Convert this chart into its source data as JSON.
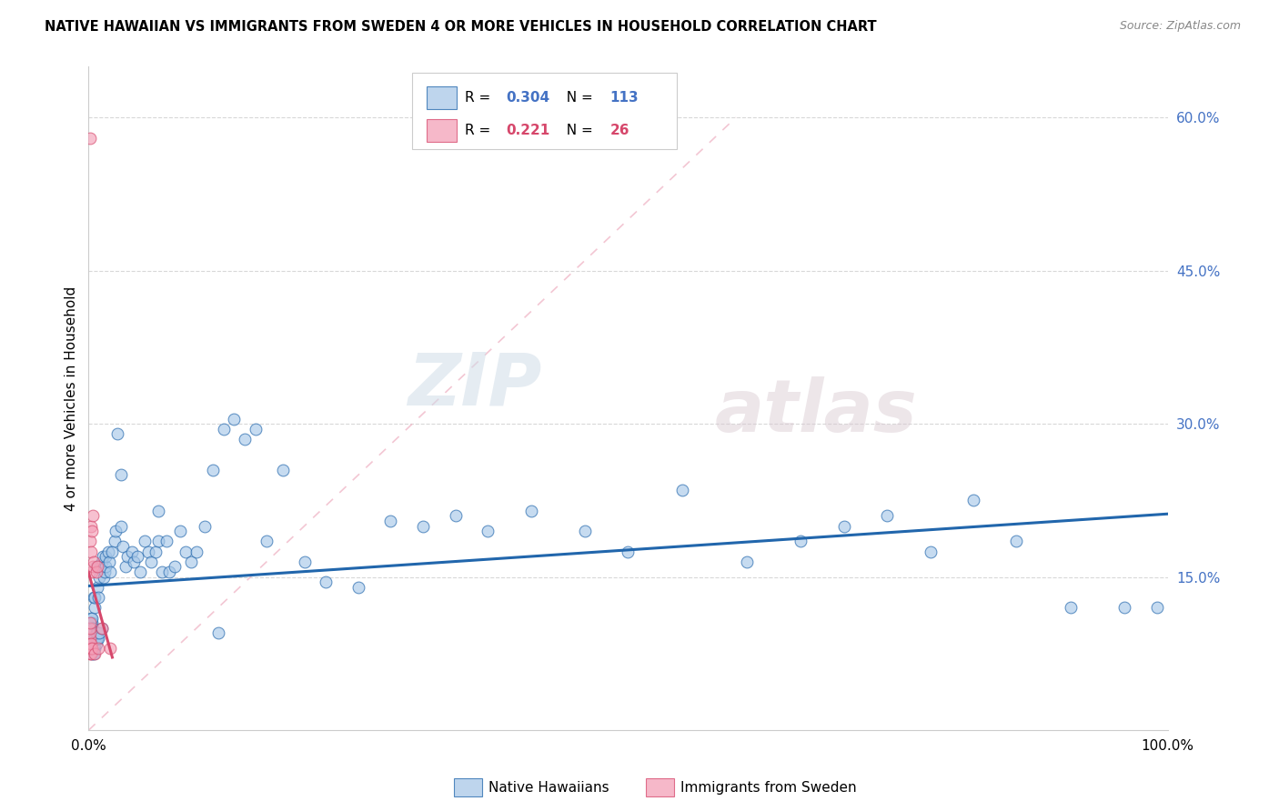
{
  "title": "NATIVE HAWAIIAN VS IMMIGRANTS FROM SWEDEN 4 OR MORE VEHICLES IN HOUSEHOLD CORRELATION CHART",
  "source": "Source: ZipAtlas.com",
  "ylabel": "4 or more Vehicles in Household",
  "xlim": [
    0,
    1.0
  ],
  "ylim": [
    0,
    0.65
  ],
  "x_ticks": [
    0.0,
    0.2,
    0.4,
    0.6,
    0.8,
    1.0
  ],
  "x_tick_labels": [
    "0.0%",
    "",
    "",
    "",
    "",
    "100.0%"
  ],
  "y_ticks": [
    0.0,
    0.15,
    0.3,
    0.45,
    0.6
  ],
  "y_tick_labels": [
    "",
    "15.0%",
    "30.0%",
    "45.0%",
    "60.0%"
  ],
  "legend1_label": "Native Hawaiians",
  "legend2_label": "Immigrants from Sweden",
  "R1": 0.304,
  "N1": 113,
  "R2": 0.221,
  "N2": 26,
  "blue_color": "#a8c8e8",
  "pink_color": "#f4a0b8",
  "blue_line_color": "#2166ac",
  "pink_line_color": "#d6476b",
  "diag_color": "#f0b8c8",
  "watermark_zip": "ZIP",
  "watermark_atlas": "atlas",
  "blue_scatter_x": [
    0.001,
    0.001,
    0.001,
    0.001,
    0.002,
    0.002,
    0.002,
    0.002,
    0.002,
    0.002,
    0.002,
    0.003,
    0.003,
    0.003,
    0.003,
    0.003,
    0.003,
    0.003,
    0.003,
    0.004,
    0.004,
    0.004,
    0.004,
    0.004,
    0.005,
    0.005,
    0.005,
    0.005,
    0.005,
    0.006,
    0.006,
    0.006,
    0.006,
    0.006,
    0.007,
    0.007,
    0.007,
    0.007,
    0.008,
    0.008,
    0.008,
    0.009,
    0.009,
    0.01,
    0.01,
    0.011,
    0.012,
    0.012,
    0.013,
    0.014,
    0.015,
    0.016,
    0.016,
    0.018,
    0.019,
    0.02,
    0.022,
    0.024,
    0.025,
    0.027,
    0.03,
    0.032,
    0.034,
    0.036,
    0.04,
    0.042,
    0.045,
    0.048,
    0.052,
    0.055,
    0.058,
    0.062,
    0.065,
    0.068,
    0.072,
    0.075,
    0.08,
    0.085,
    0.09,
    0.095,
    0.1,
    0.108,
    0.115,
    0.125,
    0.135,
    0.145,
    0.155,
    0.165,
    0.18,
    0.2,
    0.22,
    0.25,
    0.28,
    0.31,
    0.34,
    0.37,
    0.41,
    0.46,
    0.5,
    0.55,
    0.61,
    0.66,
    0.7,
    0.74,
    0.78,
    0.82,
    0.86,
    0.91,
    0.96,
    0.99,
    0.03,
    0.065,
    0.12
  ],
  "blue_scatter_y": [
    0.085,
    0.09,
    0.095,
    0.1,
    0.08,
    0.085,
    0.09,
    0.095,
    0.1,
    0.105,
    0.11,
    0.075,
    0.08,
    0.085,
    0.09,
    0.095,
    0.1,
    0.105,
    0.11,
    0.08,
    0.085,
    0.09,
    0.095,
    0.1,
    0.075,
    0.08,
    0.085,
    0.09,
    0.13,
    0.08,
    0.085,
    0.09,
    0.12,
    0.13,
    0.085,
    0.09,
    0.095,
    0.16,
    0.09,
    0.095,
    0.14,
    0.09,
    0.13,
    0.095,
    0.15,
    0.16,
    0.1,
    0.165,
    0.17,
    0.15,
    0.155,
    0.16,
    0.17,
    0.175,
    0.165,
    0.155,
    0.175,
    0.185,
    0.195,
    0.29,
    0.2,
    0.18,
    0.16,
    0.17,
    0.175,
    0.165,
    0.17,
    0.155,
    0.185,
    0.175,
    0.165,
    0.175,
    0.185,
    0.155,
    0.185,
    0.155,
    0.16,
    0.195,
    0.175,
    0.165,
    0.175,
    0.2,
    0.255,
    0.295,
    0.305,
    0.285,
    0.295,
    0.185,
    0.255,
    0.165,
    0.145,
    0.14,
    0.205,
    0.2,
    0.21,
    0.195,
    0.215,
    0.195,
    0.175,
    0.235,
    0.165,
    0.185,
    0.2,
    0.21,
    0.175,
    0.225,
    0.185,
    0.12,
    0.12,
    0.12,
    0.25,
    0.215,
    0.095
  ],
  "pink_scatter_x": [
    0.001,
    0.001,
    0.001,
    0.001,
    0.001,
    0.001,
    0.001,
    0.001,
    0.001,
    0.002,
    0.002,
    0.002,
    0.002,
    0.002,
    0.003,
    0.003,
    0.003,
    0.004,
    0.004,
    0.005,
    0.006,
    0.007,
    0.008,
    0.009,
    0.012,
    0.02
  ],
  "pink_scatter_y": [
    0.075,
    0.08,
    0.085,
    0.09,
    0.095,
    0.1,
    0.105,
    0.185,
    0.58,
    0.075,
    0.08,
    0.085,
    0.175,
    0.2,
    0.08,
    0.155,
    0.195,
    0.16,
    0.21,
    0.165,
    0.075,
    0.155,
    0.16,
    0.08,
    0.1,
    0.08
  ]
}
